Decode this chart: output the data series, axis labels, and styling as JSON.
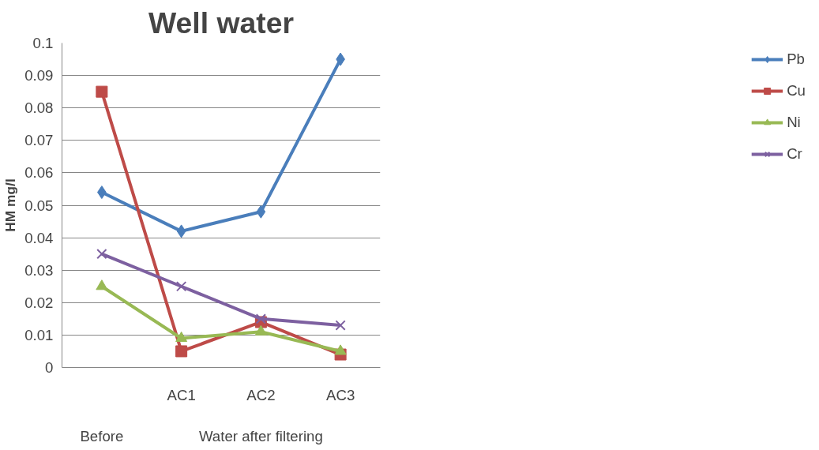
{
  "chart_data": {
    "type": "line",
    "title": "Well water",
    "ylabel": "HM mg/l",
    "categories": [
      null,
      "AC1",
      "AC2",
      "AC3"
    ],
    "series": [
      {
        "name": "Pb",
        "color": "#4a7ebb",
        "marker": "diamond",
        "values": [
          0.054,
          0.042,
          0.048,
          0.095
        ]
      },
      {
        "name": "Cu",
        "color": "#be4b48",
        "marker": "square",
        "values": [
          0.085,
          0.005,
          0.014,
          0.004
        ]
      },
      {
        "name": "Ni",
        "color": "#98b954",
        "marker": "triangle",
        "values": [
          0.025,
          0.009,
          0.011,
          0.005
        ]
      },
      {
        "name": "Cr",
        "color": "#7d60a0",
        "marker": "cross",
        "values": [
          0.035,
          0.025,
          0.015,
          0.013
        ]
      }
    ],
    "ylim": [
      0,
      0.1
    ],
    "yticks": [
      0,
      0.01,
      0.02,
      0.03,
      0.04,
      0.05,
      0.06,
      0.07,
      0.08,
      0.09,
      0.1
    ],
    "grid": "y",
    "legend": "right",
    "line_style": "solid",
    "annotations": [
      "Before",
      "Water after filtering"
    ]
  }
}
